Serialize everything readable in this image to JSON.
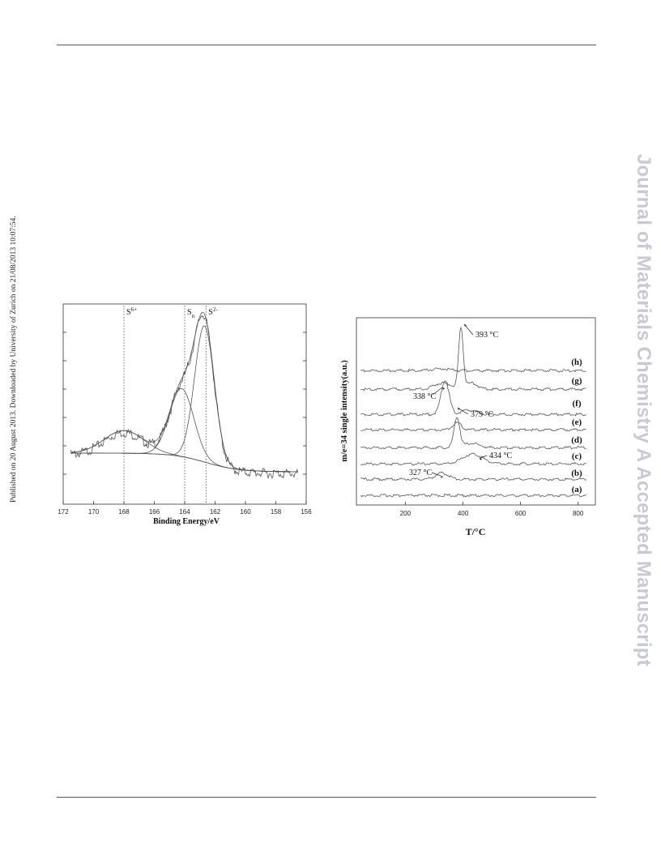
{
  "page": {
    "side_note": "Published on 20 August 2013. Downloaded by University of Zurich on 21/08/2013 10:07:54.",
    "watermark": "Journal of Materials Chemistry A Accepted Manuscript",
    "colors": {
      "watermark": "#c6cad4",
      "rule": "#555555",
      "trace": "#555555"
    }
  },
  "chart_data": [
    {
      "type": "line",
      "title": "",
      "xlabel": "Binding Energy/eV",
      "ylabel": "",
      "xlim": [
        172,
        156
      ],
      "x_reversed": true,
      "x_ticks": [
        172,
        170,
        168,
        166,
        164,
        162,
        160,
        158,
        156
      ],
      "y_ticks_labeled": false,
      "reference_lines": [
        {
          "label_main": "S",
          "label_sup": "6+",
          "label_sub": "",
          "x": 168.0
        },
        {
          "label_main": "S",
          "label_sup": "",
          "label_sub": "n",
          "x": 164.0
        },
        {
          "label_main": "S",
          "label_sup": "2-",
          "label_sub": "",
          "x": 162.6
        }
      ],
      "series": [
        {
          "peak": 162.7,
          "height": 0.84,
          "width": 0.65
        },
        {
          "peak": 164.2,
          "height": 0.42,
          "width": 0.8
        },
        {
          "peak": 168.0,
          "height": 0.14,
          "width": 1.3
        }
      ]
    },
    {
      "type": "line",
      "title": "",
      "xlabel": "T/°C",
      "ylabel": "m/e=34 single intensity(a.u.)",
      "xlim": [
        30,
        860
      ],
      "x_ticks": [
        200,
        400,
        600,
        800
      ],
      "y_ticks_labeled": false,
      "series": [
        {
          "name": "(a)",
          "peaks": []
        },
        {
          "name": "(b)",
          "peaks": [
            {
              "x": 327,
              "h": 0.35,
              "w": 22
            }
          ]
        },
        {
          "name": "(c)",
          "peaks": [
            {
              "x": 434,
              "h": 0.55,
              "w": 35
            }
          ]
        },
        {
          "name": "(d)",
          "peaks": [
            {
              "x": 379,
              "h": 1.7,
              "w": 10
            },
            {
              "x": 430,
              "h": 0.25,
              "w": 25
            }
          ]
        },
        {
          "name": "(e)",
          "peaks": [
            {
              "x": 379,
              "h": 0.4,
              "w": 15
            }
          ]
        },
        {
          "name": "(f)",
          "peaks": [
            {
              "x": 338,
              "h": 1.9,
              "w": 14
            },
            {
              "x": 420,
              "h": 0.25,
              "w": 25
            }
          ]
        },
        {
          "name": "(g)",
          "peaks": [
            {
              "x": 393,
              "h": 3.4,
              "w": 8
            },
            {
              "x": 430,
              "h": 0.35,
              "w": 20
            },
            {
              "x": 330,
              "h": 0.35,
              "w": 30
            }
          ]
        },
        {
          "name": "(h)",
          "peaks": [
            {
              "x": 320,
              "h": 0.1,
              "w": 30
            }
          ]
        }
      ],
      "annotations": [
        {
          "text": "393 °C",
          "x": 393
        },
        {
          "text": "338 °C",
          "x": 338
        },
        {
          "text": "379 °C",
          "x": 379
        },
        {
          "text": "434 °C",
          "x": 434
        },
        {
          "text": "327 °C",
          "x": 327
        }
      ]
    }
  ]
}
